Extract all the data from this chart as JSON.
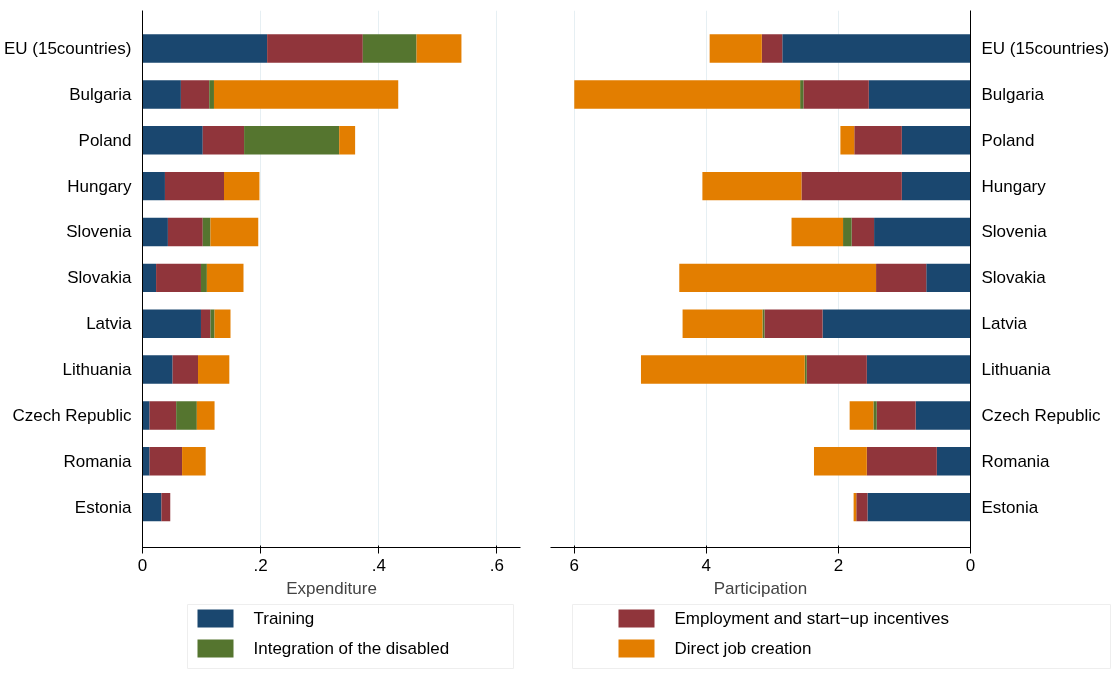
{
  "chart_data": [
    {
      "type": "bar",
      "orientation": "horizontal",
      "stacked": true,
      "xlabel": "Expenditure",
      "categories": [
        "EU (15countries)",
        "Bulgaria",
        "Poland",
        "Hungary",
        "Slovenia",
        "Slovakia",
        "Latvia",
        "Lithuania",
        "Czech Republic",
        "Romania",
        "Estonia"
      ],
      "series": [
        {
          "name": "Training",
          "color": "#1a476f",
          "values": [
            0.211,
            0.065,
            0.102,
            0.038,
            0.043,
            0.023,
            0.099,
            0.051,
            0.012,
            0.012,
            0.032
          ]
        },
        {
          "name": "Employment and start−up incentives",
          "color": "#90353b",
          "values": [
            0.162,
            0.048,
            0.07,
            0.1,
            0.059,
            0.076,
            0.016,
            0.043,
            0.045,
            0.055,
            0.015
          ]
        },
        {
          "name": "Integration of the disabled",
          "color": "#55752f",
          "values": [
            0.091,
            0.008,
            0.161,
            0,
            0.013,
            0.01,
            0.007,
            0,
            0.035,
            0,
            0
          ]
        },
        {
          "name": "Direct job creation",
          "color": "#e37e00",
          "values": [
            0.076,
            0.312,
            0.027,
            0.06,
            0.081,
            0.062,
            0.027,
            0.053,
            0.03,
            0.04,
            0
          ]
        }
      ],
      "xlim": [
        0,
        0.64
      ],
      "xticks": [
        0,
        {
          "value": 0.2,
          "label": ".2"
        },
        {
          "value": 0.4,
          "label": ".4"
        },
        {
          "value": 0.6,
          "label": ".6"
        }
      ],
      "grid": "x",
      "legend": "bottom"
    },
    {
      "type": "bar",
      "orientation": "horizontal",
      "stacked": true,
      "xlabel": "Participation",
      "categories": [
        "EU (15countries)",
        "Bulgaria",
        "Poland",
        "Hungary",
        "Slovenia",
        "Slovakia",
        "Latvia",
        "Lithuania",
        "Czech Republic",
        "Romania",
        "Estonia"
      ],
      "series": [
        {
          "color": "#1a476f",
          "values": [
            2.85,
            1.54,
            1.04,
            1.04,
            1.46,
            0.67,
            2.24,
            1.57,
            0.83,
            0.51,
            1.56
          ]
        },
        {
          "color": "#90353b",
          "values": [
            0.31,
            0.99,
            0.72,
            1.52,
            0.34,
            0.76,
            0.88,
            0.91,
            0.59,
            1.06,
            0.17
          ]
        },
        {
          "color": "#55752f",
          "values": [
            0,
            0.05,
            0,
            0,
            0.13,
            0,
            0.03,
            0.03,
            0.05,
            0,
            0
          ]
        },
        {
          "color": "#e37e00",
          "values": [
            0.79,
            3.42,
            0.21,
            1.5,
            0.78,
            2.98,
            1.21,
            2.48,
            0.36,
            0.8,
            0.04
          ]
        }
      ],
      "xlim": [
        6.36,
        0
      ],
      "xticks": [
        6,
        4,
        2,
        0
      ],
      "grid": "x"
    }
  ]
}
